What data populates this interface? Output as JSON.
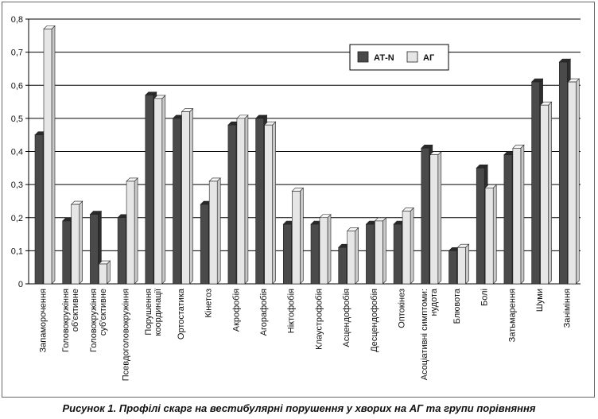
{
  "caption": "Рисунок 1. Профілі скарг на вестибулярні порушення у хворих на АГ та групи порівняння",
  "colors": {
    "series1": "#4a4a4a",
    "series1_top": "#2a2a2a",
    "series2": "#e6e6e6",
    "series2_top": "#c8c8c8",
    "grid": "#000000"
  },
  "chart_data": {
    "type": "bar",
    "ylim": [
      0,
      0.8
    ],
    "yticks": [
      "0",
      "0,1",
      "0,2",
      "0,3",
      "0,4",
      "0,5",
      "0,6",
      "0,7",
      "0,8"
    ],
    "grid": true,
    "legend_position": "top-right",
    "categories": [
      [
        "Запаморочення"
      ],
      [
        "Головокружіння",
        "об'єктивне"
      ],
      [
        "Головокружіння",
        "суб'єктивне"
      ],
      [
        "Псевдоголовокружіння"
      ],
      [
        "Порушення",
        "координації"
      ],
      [
        "Ортостатика"
      ],
      [
        "Кінетоз"
      ],
      [
        "Акрофобія"
      ],
      [
        "Агорафобія"
      ],
      [
        "Ніктофобія"
      ],
      [
        "Клаустрофобія"
      ],
      [
        "Асцендофобія"
      ],
      [
        "Десцендофобія"
      ],
      [
        "Оптокінез"
      ],
      [
        "Асоціативні симптоми:",
        "нудота"
      ],
      [
        "Блювота"
      ],
      [
        "Болі"
      ],
      [
        "Затьмарення"
      ],
      [
        "Шуми"
      ],
      [
        "Заніміння"
      ]
    ],
    "series": [
      {
        "name": "АТ-N",
        "values": [
          0.45,
          0.19,
          0.21,
          0.2,
          0.57,
          0.5,
          0.24,
          0.48,
          0.5,
          0.18,
          0.18,
          0.11,
          0.18,
          0.18,
          0.41,
          0.1,
          0.35,
          0.39,
          0.61,
          0.67
        ]
      },
      {
        "name": "АГ",
        "values": [
          0.77,
          0.24,
          0.06,
          0.31,
          0.56,
          0.52,
          0.31,
          0.5,
          0.48,
          0.28,
          0.2,
          0.16,
          0.19,
          0.22,
          0.39,
          0.11,
          0.29,
          0.41,
          0.54,
          0.61
        ]
      }
    ]
  }
}
